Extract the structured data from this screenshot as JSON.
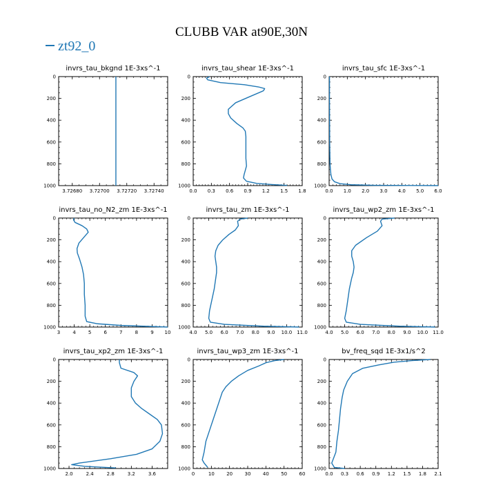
{
  "figure": {
    "title": "CLUBB VAR at90E,30N",
    "legend": [
      {
        "name": "zt92_0",
        "color": "#1f77b4"
      }
    ]
  },
  "chart_data": [
    {
      "type": "line",
      "title": "invrs_tau_bkgnd",
      "units": "1E-3xs^-1",
      "xlim": [
        3.7267,
        3.7275
      ],
      "ylim": [
        0,
        1000
      ],
      "y_inverted": true,
      "xticks": [
        "3.72680",
        "3.72700",
        "3.72720",
        "3.72740"
      ],
      "xtick_values": [
        3.7268,
        3.727,
        3.7272,
        3.7274
      ],
      "xminor": 5e-05,
      "yticks": [
        "0",
        "200",
        "400",
        "600",
        "800",
        "1000"
      ],
      "series": [
        {
          "name": "zt92_0",
          "x": [
            3.72712,
            3.72712
          ],
          "y": [
            0,
            1000
          ]
        }
      ]
    },
    {
      "type": "line",
      "title": "invrs_tau_shear",
      "units": "1E-3xs^-1",
      "xlim": [
        0,
        1.8
      ],
      "ylim": [
        0,
        1000
      ],
      "y_inverted": true,
      "xticks": [
        "0.0",
        "0.3",
        "0.6",
        "0.9",
        "1.2",
        "1.5",
        "1.8"
      ],
      "xtick_values": [
        0,
        0.3,
        0.6,
        0.9,
        1.2,
        1.5,
        1.8
      ],
      "xminor": 0.05,
      "yticks": [
        "0",
        "200",
        "400",
        "600",
        "800",
        "1000"
      ],
      "series": [
        {
          "name": "zt92_0",
          "x": [
            0.27,
            0.22,
            0.24,
            0.45,
            0.85,
            1.08,
            1.18,
            1.16,
            0.95,
            0.7,
            0.58,
            0.58,
            0.62,
            0.72,
            0.82,
            0.86,
            0.87,
            0.87,
            0.87,
            0.87,
            0.88,
            0.86,
            0.84,
            0.83,
            0.88,
            1.05,
            1.3,
            1.55
          ],
          "y": [
            0,
            15,
            30,
            55,
            75,
            95,
            110,
            130,
            180,
            240,
            300,
            340,
            380,
            430,
            470,
            500,
            550,
            600,
            680,
            750,
            820,
            860,
            900,
            930,
            960,
            980,
            990,
            998
          ]
        }
      ]
    },
    {
      "type": "line",
      "title": "invrs_tau_sfc",
      "units": "1E-3xs^-1",
      "xlim": [
        0,
        6
      ],
      "ylim": [
        0,
        1000
      ],
      "y_inverted": true,
      "xticks": [
        "0.0",
        "1.0",
        "2.0",
        "3.0",
        "4.0",
        "5.0",
        "6.0"
      ],
      "xtick_values": [
        0,
        1,
        2,
        3,
        4,
        5,
        6
      ],
      "xminor": 0.2,
      "yticks": [
        "0",
        "200",
        "400",
        "600",
        "800",
        "1000"
      ],
      "series": [
        {
          "name": "zt92_0",
          "x": [
            0.02,
            0.02,
            0.025,
            0.03,
            0.04,
            0.05,
            0.07,
            0.1,
            0.16,
            0.3,
            0.6,
            1.2,
            2.5,
            4.5,
            6.0
          ],
          "y": [
            0,
            200,
            400,
            600,
            700,
            800,
            850,
            900,
            940,
            965,
            982,
            992,
            997,
            999,
            1000
          ]
        }
      ]
    },
    {
      "type": "line",
      "title": "invrs_tau_no_N2_zm",
      "units": "1E-3xs^-1",
      "xlim": [
        3,
        10
      ],
      "ylim": [
        0,
        1000
      ],
      "y_inverted": true,
      "xticks": [
        "3",
        "4",
        "5",
        "6",
        "7",
        "8",
        "9",
        "10"
      ],
      "xtick_values": [
        3,
        4,
        5,
        6,
        7,
        8,
        9,
        10
      ],
      "xminor": 0.25,
      "yticks": [
        "0",
        "200",
        "400",
        "600",
        "800",
        "1000"
      ],
      "series": [
        {
          "name": "zt92_0",
          "x": [
            4.0,
            3.95,
            4.05,
            4.5,
            4.8,
            4.9,
            4.6,
            4.3,
            4.18,
            4.2,
            4.35,
            4.5,
            4.6,
            4.65,
            4.65,
            4.7,
            4.7,
            4.8,
            5.5,
            7.0,
            9.2,
            10.0
          ],
          "y": [
            0,
            15,
            40,
            70,
            100,
            130,
            180,
            230,
            280,
            320,
            380,
            450,
            520,
            600,
            700,
            800,
            900,
            950,
            970,
            985,
            996,
            1000
          ]
        }
      ]
    },
    {
      "type": "line",
      "title": "invrs_tau_zm",
      "units": "1E-3xs^-1",
      "xlim": [
        4,
        11
      ],
      "ylim": [
        0,
        1000
      ],
      "y_inverted": true,
      "xticks": [
        "4.0",
        "5.0",
        "6.0",
        "7.0",
        "8.0",
        "9.0",
        "10.0",
        "11.0"
      ],
      "xtick_values": [
        4,
        5,
        6,
        7,
        8,
        9,
        10,
        11
      ],
      "xminor": 0.25,
      "yticks": [
        "0",
        "200",
        "400",
        "600",
        "800",
        "1000"
      ],
      "series": [
        {
          "name": "zt92_0",
          "x": [
            7.5,
            7.0,
            6.85,
            6.9,
            6.7,
            6.3,
            5.9,
            5.6,
            5.45,
            5.4,
            5.45,
            5.5,
            5.5,
            5.45,
            5.35,
            5.2,
            5.05,
            5.0,
            5.1,
            6.0,
            8.5,
            10.8
          ],
          "y": [
            0,
            10,
            30,
            70,
            110,
            150,
            200,
            250,
            300,
            350,
            400,
            450,
            500,
            550,
            650,
            750,
            850,
            920,
            955,
            975,
            992,
            1000
          ]
        }
      ]
    },
    {
      "type": "line",
      "title": "invrs_tau_wp2_zm",
      "units": "1E-3xs^-1",
      "xlim": [
        4,
        11
      ],
      "ylim": [
        0,
        1000
      ],
      "y_inverted": true,
      "xticks": [
        "4.0",
        "5.0",
        "6.0",
        "7.0",
        "8.0",
        "9.0",
        "10.0",
        "11.0"
      ],
      "xtick_values": [
        4,
        5,
        6,
        7,
        8,
        9,
        10,
        11
      ],
      "xminor": 0.25,
      "yticks": [
        "0",
        "200",
        "400",
        "600",
        "800",
        "1000"
      ],
      "series": [
        {
          "name": "zt92_0",
          "x": [
            8.2,
            7.4,
            7.3,
            7.4,
            7.1,
            6.4,
            5.7,
            5.45,
            5.45,
            5.55,
            5.6,
            5.55,
            5.45,
            5.3,
            5.2,
            5.1,
            5.0,
            5.1,
            6.0,
            8.5,
            10.8
          ],
          "y": [
            0,
            10,
            30,
            70,
            120,
            180,
            250,
            300,
            350,
            400,
            450,
            500,
            550,
            650,
            750,
            850,
            920,
            955,
            975,
            992,
            1000
          ]
        }
      ]
    },
    {
      "type": "line",
      "title": "invrs_tau_xp2_zm",
      "units": "1E-3xs^-1",
      "xlim": [
        1.8,
        3.9
      ],
      "ylim": [
        0,
        1000
      ],
      "y_inverted": true,
      "xticks": [
        "2.0",
        "2.4",
        "2.8",
        "3.2",
        "3.6"
      ],
      "xtick_values": [
        2.0,
        2.4,
        2.8,
        3.2,
        3.6
      ],
      "xminor": 0.1,
      "yticks": [
        "0",
        "200",
        "400",
        "600",
        "800",
        "1000"
      ],
      "series": [
        {
          "name": "zt92_0",
          "x": [
            2.97,
            2.97,
            3.0,
            3.25,
            3.32,
            3.25,
            3.2,
            3.2,
            3.2,
            3.28,
            3.4,
            3.55,
            3.7,
            3.78,
            3.8,
            3.75,
            3.6,
            3.3,
            2.8,
            2.2,
            2.05,
            2.3,
            2.9
          ],
          "y": [
            0,
            30,
            80,
            120,
            150,
            200,
            260,
            300,
            340,
            400,
            450,
            500,
            550,
            600,
            680,
            750,
            820,
            870,
            910,
            950,
            965,
            980,
            995
          ]
        }
      ]
    },
    {
      "type": "line",
      "title": "invrs_tau_wp3_zm",
      "units": "1E-3xs^-1",
      "xlim": [
        0,
        60
      ],
      "ylim": [
        0,
        1000
      ],
      "y_inverted": true,
      "xticks": [
        "0",
        "10",
        "20",
        "30",
        "40",
        "50",
        "60"
      ],
      "xtick_values": [
        0,
        10,
        20,
        30,
        40,
        50,
        60
      ],
      "xminor": 2,
      "yticks": [
        "0",
        "200",
        "400",
        "600",
        "800",
        "1000"
      ],
      "series": [
        {
          "name": "zt92_0",
          "x": [
            50,
            45,
            40,
            36,
            30,
            25,
            21,
            18,
            16,
            15,
            13,
            11,
            9,
            7,
            6,
            5,
            6,
            7,
            8
          ],
          "y": [
            0,
            10,
            30,
            60,
            100,
            150,
            200,
            250,
            300,
            350,
            450,
            550,
            650,
            750,
            850,
            920,
            950,
            970,
            990
          ]
        }
      ]
    },
    {
      "type": "line",
      "title": "bv_freq_sqd",
      "units": "1E-3x1/s^2",
      "xlim": [
        0,
        2.1
      ],
      "ylim": [
        0,
        1000
      ],
      "y_inverted": true,
      "xticks": [
        "0.0",
        "0.3",
        "0.6",
        "0.9",
        "1.2",
        "1.5",
        "1.8",
        "2.1"
      ],
      "xtick_values": [
        0,
        0.3,
        0.6,
        0.9,
        1.2,
        1.5,
        1.8,
        2.1
      ],
      "xminor": 0.1,
      "yticks": [
        "0",
        "200",
        "400",
        "600",
        "800",
        "1000"
      ],
      "series": [
        {
          "name": "zt92_0",
          "x": [
            1.95,
            1.6,
            1.25,
            0.95,
            0.65,
            0.45,
            0.35,
            0.28,
            0.25,
            0.22,
            0.2,
            0.18,
            0.15,
            0.13,
            0.05,
            0.1,
            0.3
          ],
          "y": [
            0,
            10,
            25,
            50,
            80,
            130,
            200,
            280,
            350,
            450,
            550,
            650,
            750,
            850,
            950,
            990,
            1000
          ]
        }
      ]
    }
  ]
}
